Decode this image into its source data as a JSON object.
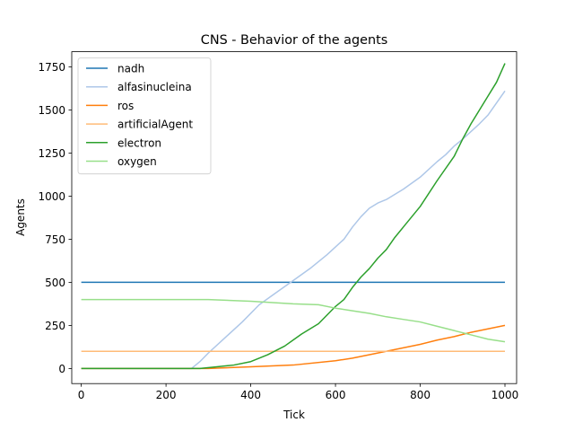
{
  "chart_data": {
    "type": "line",
    "title": "CNS - Behavior of the agents",
    "xlabel": "Tick",
    "ylabel": "Agents",
    "xlim": [
      -22.5,
      1027.5
    ],
    "ylim": [
      -87.5,
      1837.5
    ],
    "xticks": [
      0,
      200,
      400,
      600,
      800,
      1000
    ],
    "yticks": [
      0,
      250,
      500,
      750,
      1000,
      1250,
      1500,
      1750
    ],
    "legend_position": "upper-left",
    "grid": false,
    "series": [
      {
        "name": "nadh",
        "color": "#1f77b4",
        "points": [
          [
            0,
            500
          ],
          [
            1000,
            500
          ]
        ]
      },
      {
        "name": "alfasinucleina",
        "color": "#aec7e8",
        "points": [
          [
            0,
            0
          ],
          [
            260,
            0
          ],
          [
            280,
            40
          ],
          [
            300,
            90
          ],
          [
            340,
            180
          ],
          [
            380,
            270
          ],
          [
            420,
            370
          ],
          [
            460,
            440
          ],
          [
            500,
            510
          ],
          [
            540,
            580
          ],
          [
            580,
            660
          ],
          [
            620,
            750
          ],
          [
            640,
            820
          ],
          [
            660,
            880
          ],
          [
            680,
            930
          ],
          [
            700,
            960
          ],
          [
            720,
            980
          ],
          [
            760,
            1040
          ],
          [
            800,
            1110
          ],
          [
            840,
            1200
          ],
          [
            860,
            1240
          ],
          [
            880,
            1290
          ],
          [
            900,
            1330
          ],
          [
            940,
            1420
          ],
          [
            960,
            1470
          ],
          [
            1000,
            1610
          ]
        ]
      },
      {
        "name": "ros",
        "color": "#ff7f0e",
        "points": [
          [
            0,
            0
          ],
          [
            300,
            0
          ],
          [
            400,
            10
          ],
          [
            500,
            20
          ],
          [
            600,
            45
          ],
          [
            640,
            60
          ],
          [
            700,
            90
          ],
          [
            760,
            120
          ],
          [
            800,
            140
          ],
          [
            840,
            165
          ],
          [
            880,
            185
          ],
          [
            920,
            210
          ],
          [
            960,
            230
          ],
          [
            1000,
            250
          ]
        ]
      },
      {
        "name": "artificialAgent",
        "color": "#ffbb78",
        "points": [
          [
            0,
            100
          ],
          [
            1000,
            100
          ]
        ]
      },
      {
        "name": "electron",
        "color": "#2ca02c",
        "points": [
          [
            0,
            0
          ],
          [
            280,
            0
          ],
          [
            320,
            10
          ],
          [
            360,
            20
          ],
          [
            400,
            40
          ],
          [
            440,
            80
          ],
          [
            480,
            130
          ],
          [
            520,
            200
          ],
          [
            560,
            260
          ],
          [
            600,
            360
          ],
          [
            620,
            400
          ],
          [
            640,
            470
          ],
          [
            660,
            530
          ],
          [
            680,
            580
          ],
          [
            700,
            640
          ],
          [
            720,
            690
          ],
          [
            740,
            760
          ],
          [
            760,
            820
          ],
          [
            800,
            940
          ],
          [
            840,
            1090
          ],
          [
            880,
            1230
          ],
          [
            900,
            1330
          ],
          [
            920,
            1420
          ],
          [
            940,
            1500
          ],
          [
            960,
            1580
          ],
          [
            980,
            1660
          ],
          [
            1000,
            1770
          ]
        ]
      },
      {
        "name": "oxygen",
        "color": "#98df8a",
        "points": [
          [
            0,
            400
          ],
          [
            300,
            400
          ],
          [
            400,
            390
          ],
          [
            500,
            375
          ],
          [
            560,
            370
          ],
          [
            600,
            350
          ],
          [
            640,
            335
          ],
          [
            680,
            320
          ],
          [
            720,
            300
          ],
          [
            760,
            285
          ],
          [
            800,
            270
          ],
          [
            840,
            245
          ],
          [
            880,
            220
          ],
          [
            920,
            195
          ],
          [
            960,
            170
          ],
          [
            1000,
            155
          ]
        ]
      }
    ]
  }
}
